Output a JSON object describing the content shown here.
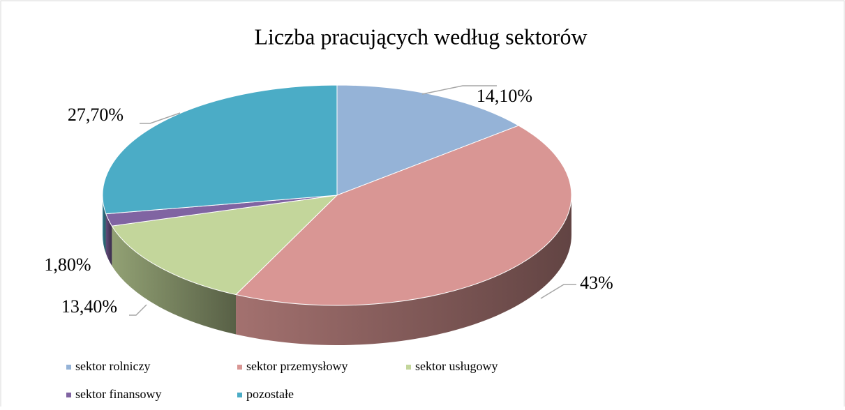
{
  "chart_data": {
    "type": "pie",
    "title": "Liczba pracujących według sektorów",
    "categories": [
      "sektor rolniczy",
      "sektor przemysłowy",
      "sektor usługowy",
      "sektor finansowy",
      "pozostałe"
    ],
    "values": [
      14.1,
      43,
      13.4,
      1.8,
      27.7
    ],
    "value_labels": [
      "14,10%",
      "43%",
      "13,40%",
      "1,80%",
      "27,70%"
    ],
    "colors": [
      "#95b3d7",
      "#d99694",
      "#c3d69b",
      "#8064a2",
      "#4bacc6"
    ],
    "legend": "bottom"
  }
}
